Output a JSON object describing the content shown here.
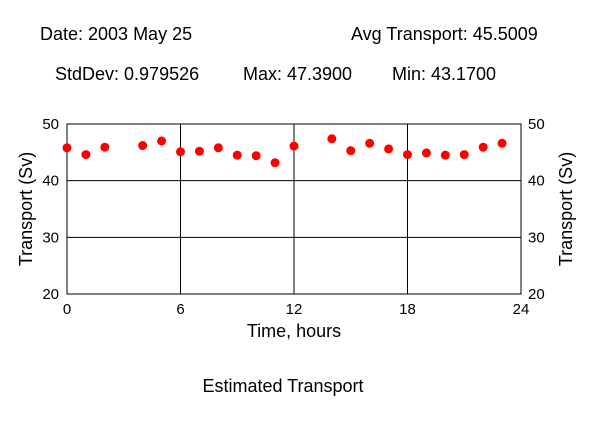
{
  "header": {
    "date": "Date: 2003 May 25",
    "avg": "Avg Transport: 45.5009",
    "stddev": "StdDev: 0.979526",
    "max": "Max: 47.3900",
    "min": "Min: 43.1700"
  },
  "chart_data": {
    "type": "scatter",
    "title": "",
    "caption": "Estimated Transport",
    "xlabel": "Time, hours",
    "ylabel": "Transport (Sv)",
    "xlim": [
      0,
      24
    ],
    "ylim": [
      20,
      50
    ],
    "xticks": [
      0,
      6,
      12,
      18,
      24
    ],
    "yticks": [
      20,
      30,
      40,
      50
    ],
    "grid": true,
    "marker_color": "#ff0000",
    "x": [
      0,
      1,
      2,
      4,
      5,
      6,
      7,
      8,
      9,
      10,
      11,
      12,
      14,
      15,
      16,
      17,
      18,
      19,
      20,
      21,
      22,
      23
    ],
    "y": [
      45.8,
      44.6,
      45.9,
      46.2,
      47.0,
      45.1,
      45.2,
      45.8,
      44.5,
      44.4,
      43.17,
      46.1,
      47.39,
      45.3,
      46.6,
      45.6,
      44.6,
      44.9,
      44.5,
      44.6,
      45.9,
      46.6
    ]
  }
}
